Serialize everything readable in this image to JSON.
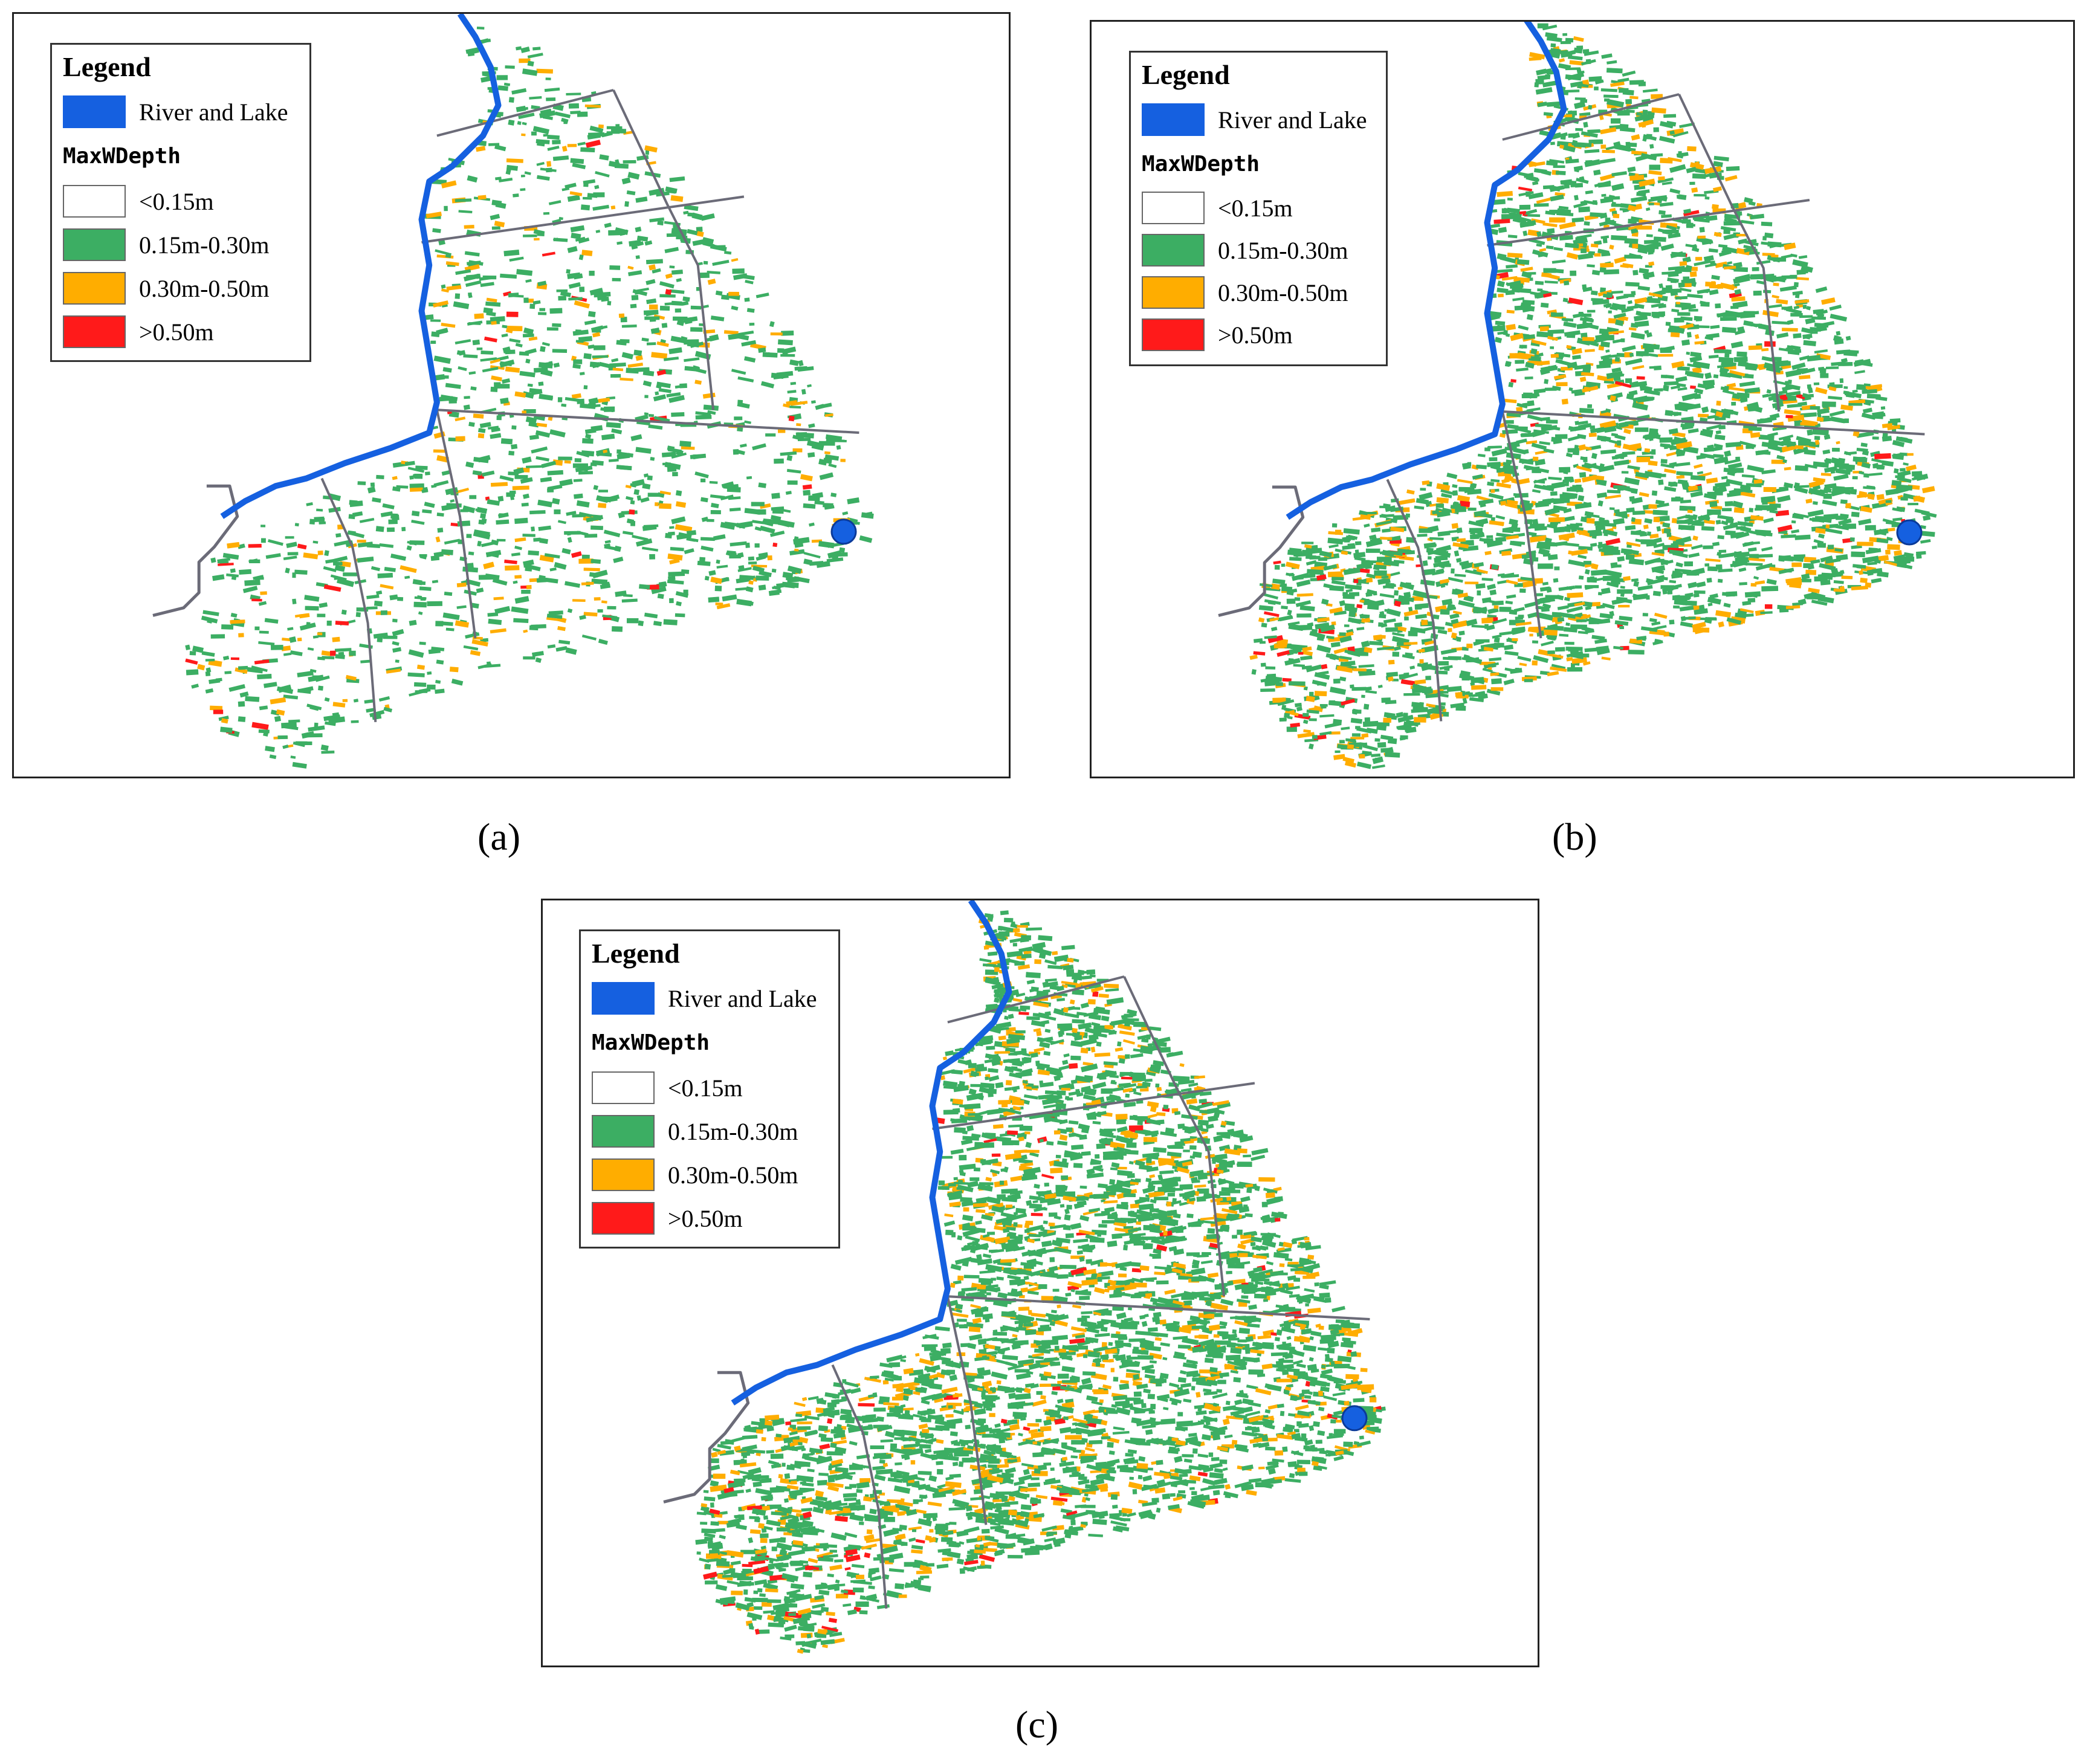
{
  "panels": [
    {
      "id": "a",
      "caption": "(a)",
      "legend": {
        "title": "Legend",
        "water_label": "River and Lake",
        "field_name": "MaxWDepth",
        "classes": [
          "<0.15m",
          "0.15m-0.30m",
          "0.30m-0.50m",
          ">0.50m"
        ]
      }
    },
    {
      "id": "b",
      "caption": "(b)",
      "legend": {
        "title": "Legend",
        "water_label": "River and Lake",
        "field_name": "MaxWDepth",
        "classes": [
          "<0.15m",
          "0.15m-0.30m",
          "0.30m-0.50m",
          ">0.50m"
        ]
      }
    },
    {
      "id": "c",
      "caption": "(c)",
      "legend": {
        "title": "Legend",
        "water_label": "River and Lake",
        "field_name": "MaxWDepth",
        "classes": [
          "<0.15m",
          "0.15m-0.30m",
          "0.30m-0.50m",
          ">0.50m"
        ]
      }
    }
  ],
  "colors": {
    "water": "#1560e0",
    "class_lt_015": "#ffffff",
    "class_015_030": "#3cae63",
    "class_030_050": "#ffad00",
    "class_gt_050": "#ff1a1a",
    "road": "#6b6b78"
  },
  "density": {
    "a": 0.35,
    "b": 0.75,
    "c": 0.9
  }
}
